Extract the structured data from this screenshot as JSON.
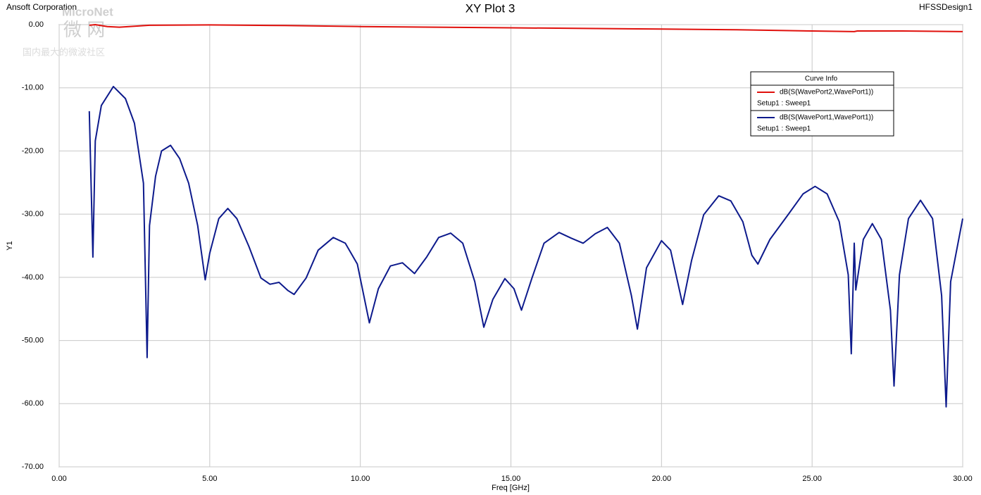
{
  "chart_data": {
    "type": "line",
    "title": "XY Plot 3",
    "corner_left": "Ansoft Corporation",
    "corner_right": "HFSSDesign1",
    "watermark": [
      "MicroNet",
      "微 网",
      "国内最大的微波社区"
    ],
    "x_label": "Freq [GHz]",
    "y_label": "Y1",
    "legend_title": "Curve Info",
    "xlim": [
      0,
      30
    ],
    "ylim": [
      -70,
      0
    ],
    "xticks": [
      {
        "value": 0,
        "label": "0.00"
      },
      {
        "value": 5,
        "label": "5.00"
      },
      {
        "value": 10,
        "label": "10.00"
      },
      {
        "value": 15,
        "label": "15.00"
      },
      {
        "value": 20,
        "label": "20.00"
      },
      {
        "value": 25,
        "label": "25.00"
      },
      {
        "value": 30,
        "label": "30.00"
      }
    ],
    "yticks": [
      {
        "value": 0,
        "label": "0.00"
      },
      {
        "value": -10,
        "label": "-10.00"
      },
      {
        "value": -20,
        "label": "-20.00"
      },
      {
        "value": -30,
        "label": "-30.00"
      },
      {
        "value": -40,
        "label": "-40.00"
      },
      {
        "value": -50,
        "label": "-50.00"
      },
      {
        "value": -60,
        "label": "-60.00"
      },
      {
        "value": -70,
        "label": "-70.00"
      }
    ],
    "grid": true,
    "series": [
      {
        "name": "dB(S(WavePort2,WavePort1))",
        "setup": "Setup1 : Sweep1",
        "color": "#e0100c",
        "x": [
          1.0,
          1.2,
          1.6,
          2.0,
          3.0,
          5.0,
          7.5,
          10.0,
          12.5,
          15.0,
          17.5,
          20.0,
          22.5,
          25.0,
          26.4,
          26.5,
          28.0,
          30.0
        ],
        "values": [
          -0.1,
          0.0,
          -0.3,
          -0.4,
          -0.1,
          -0.05,
          -0.15,
          -0.3,
          -0.4,
          -0.5,
          -0.6,
          -0.7,
          -0.8,
          -1.0,
          -1.1,
          -1.0,
          -1.0,
          -1.1
        ]
      },
      {
        "name": "dB(S(WavePort1,WavePort1))",
        "setup": "Setup1 : Sweep1",
        "color": "#0d1a8c",
        "x": [
          1.0,
          1.12,
          1.2,
          1.4,
          1.8,
          2.2,
          2.5,
          2.8,
          2.92,
          3.0,
          3.2,
          3.4,
          3.7,
          4.0,
          4.3,
          4.6,
          4.85,
          5.0,
          5.3,
          5.6,
          5.9,
          6.3,
          6.7,
          7.0,
          7.3,
          7.6,
          7.8,
          8.2,
          8.6,
          9.1,
          9.5,
          9.9,
          10.3,
          10.6,
          11.0,
          11.4,
          11.8,
          12.2,
          12.6,
          13.0,
          13.4,
          13.8,
          14.1,
          14.4,
          14.8,
          15.1,
          15.35,
          15.7,
          16.1,
          16.6,
          17.0,
          17.4,
          17.8,
          18.2,
          18.6,
          19.0,
          19.2,
          19.5,
          20.0,
          20.3,
          20.7,
          21.0,
          21.4,
          21.9,
          22.3,
          22.7,
          23.0,
          23.2,
          23.6,
          24.2,
          24.7,
          25.1,
          25.5,
          25.9,
          26.2,
          26.3,
          26.4,
          26.45,
          26.7,
          27.0,
          27.3,
          27.6,
          27.72,
          27.9,
          28.2,
          28.6,
          29.0,
          29.3,
          29.45,
          29.6,
          30.0
        ],
        "values": [
          -13.7,
          -36.8,
          -18.4,
          -12.8,
          -9.8,
          -11.7,
          -15.6,
          -25.1,
          -52.7,
          -31.8,
          -24.0,
          -20.0,
          -19.1,
          -21.2,
          -25.1,
          -31.8,
          -40.4,
          -36.2,
          -30.7,
          -29.1,
          -30.7,
          -35.1,
          -40.1,
          -41.1,
          -40.8,
          -42.1,
          -42.7,
          -40.1,
          -35.7,
          -33.7,
          -34.6,
          -37.9,
          -47.2,
          -41.8,
          -38.2,
          -37.7,
          -39.4,
          -36.8,
          -33.7,
          -33.0,
          -34.6,
          -40.7,
          -47.9,
          -43.5,
          -40.2,
          -41.8,
          -45.2,
          -40.1,
          -34.6,
          -32.9,
          -33.8,
          -34.6,
          -33.1,
          -32.1,
          -34.6,
          -42.9,
          -48.2,
          -38.5,
          -34.2,
          -35.7,
          -44.3,
          -37.3,
          -30.1,
          -27.1,
          -27.9,
          -31.2,
          -36.5,
          -37.9,
          -34.0,
          -30.1,
          -26.8,
          -25.6,
          -26.8,
          -31.2,
          -39.6,
          -52.1,
          -34.6,
          -42.0,
          -34.0,
          -31.5,
          -34.0,
          -45.2,
          -57.2,
          -39.6,
          -30.7,
          -27.8,
          -30.7,
          -42.9,
          -60.5,
          -40.7,
          -30.7
        ]
      }
    ]
  }
}
